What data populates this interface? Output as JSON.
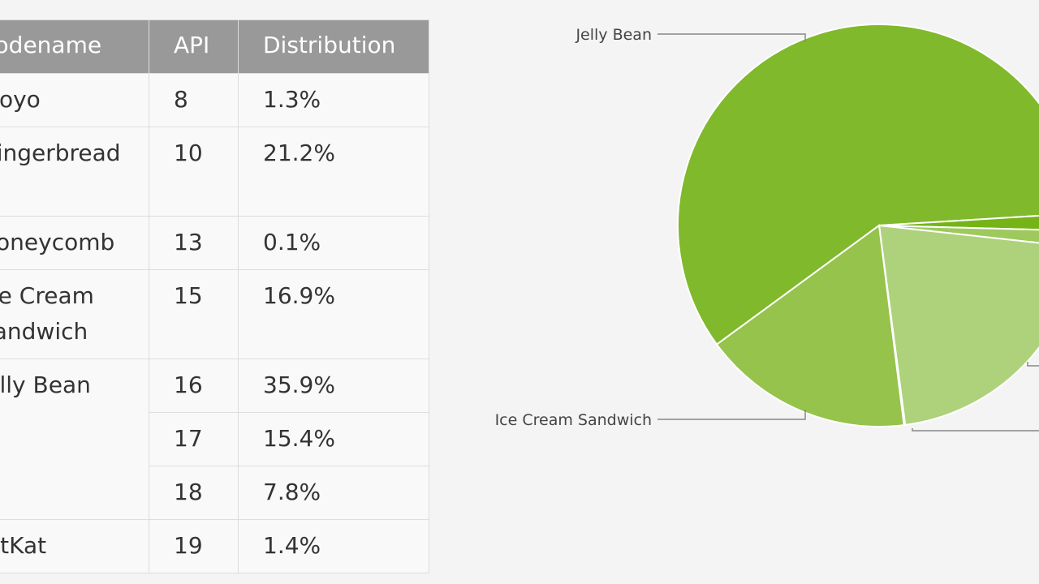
{
  "table": {
    "headers": [
      "Codename",
      "API",
      "Distribution"
    ],
    "rows": [
      {
        "codename": "Froyo",
        "api": "8",
        "distribution": "1.3%"
      },
      {
        "codename": "Gingerbread",
        "api": "10",
        "distribution": "21.2%"
      },
      {
        "codename": "Honeycomb",
        "api": "13",
        "distribution": "0.1%"
      },
      {
        "codename": "Ice Cream Sandwich",
        "api": "15",
        "distribution": "16.9%"
      },
      {
        "codename": "Jelly Bean",
        "api": "16",
        "distribution": "35.9%"
      },
      {
        "codename": "Jelly Bean",
        "api": "17",
        "distribution": "15.4%"
      },
      {
        "codename": "Jelly Bean",
        "api": "18",
        "distribution": "7.8%"
      },
      {
        "codename": "KitKat",
        "api": "19",
        "distribution": "1.4%"
      }
    ]
  },
  "chart_data": {
    "type": "pie",
    "title": "",
    "categories": [
      "Jelly Bean",
      "KitKat",
      "Froyo",
      "Gingerbread",
      "Honeycomb",
      "Ice Cream Sandwich"
    ],
    "values": [
      59.1,
      1.4,
      1.3,
      21.2,
      0.1,
      16.9
    ],
    "labels_visible": [
      "Jelly Bean",
      "Ice Cream Sandwich"
    ],
    "colors": [
      "#80b92c",
      "#74b417",
      "#9ec95d",
      "#aed27b",
      "#c2de99",
      "#95c34b"
    ]
  }
}
